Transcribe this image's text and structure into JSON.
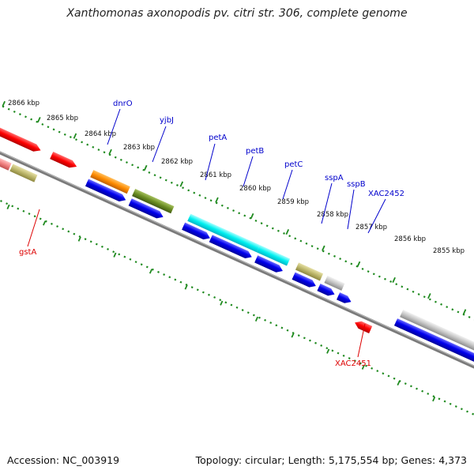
{
  "title": "Xanthomonas axonopodis pv. citri str. 306, complete genome",
  "footer": {
    "accession": "Accession: NC_003919",
    "summary": "Topology: circular; Length: 5,175,554 bp; Genes: 4,373"
  },
  "scale_labels": [
    "2866 kbp",
    "2865 kbp",
    "2864 kbp",
    "2863 kbp",
    "2862 kbp",
    "2861 kbp",
    "2860 kbp",
    "2859 kbp",
    "2858 kbp",
    "2857 kbp",
    "2856 kbp",
    "2855 kbp"
  ],
  "gene_labels": {
    "dnrO": "dnrO",
    "yjbJ": "yjbJ",
    "petA": "petA",
    "petB": "petB",
    "petC": "petC",
    "sspA": "sspA",
    "sspB": "sspB",
    "XAC2452": "XAC2452",
    "gstA": "gstA",
    "XAC2451": "XAC2451"
  },
  "colors": {
    "label_forward": "#0000cc",
    "label_reverse": "#dd0000",
    "backbone": "#777777",
    "ticks": "#1f8a1f",
    "cds": "#0000ee",
    "red_gene": "#ff0000",
    "orange_gene": "#ff8c00",
    "olive_gene": "#6b8e23",
    "cyan_gene": "#00e5ee",
    "khaki_gene": "#bdb76b",
    "grey_gene": "#bbbbbb",
    "pink_gene": "#f08080"
  }
}
